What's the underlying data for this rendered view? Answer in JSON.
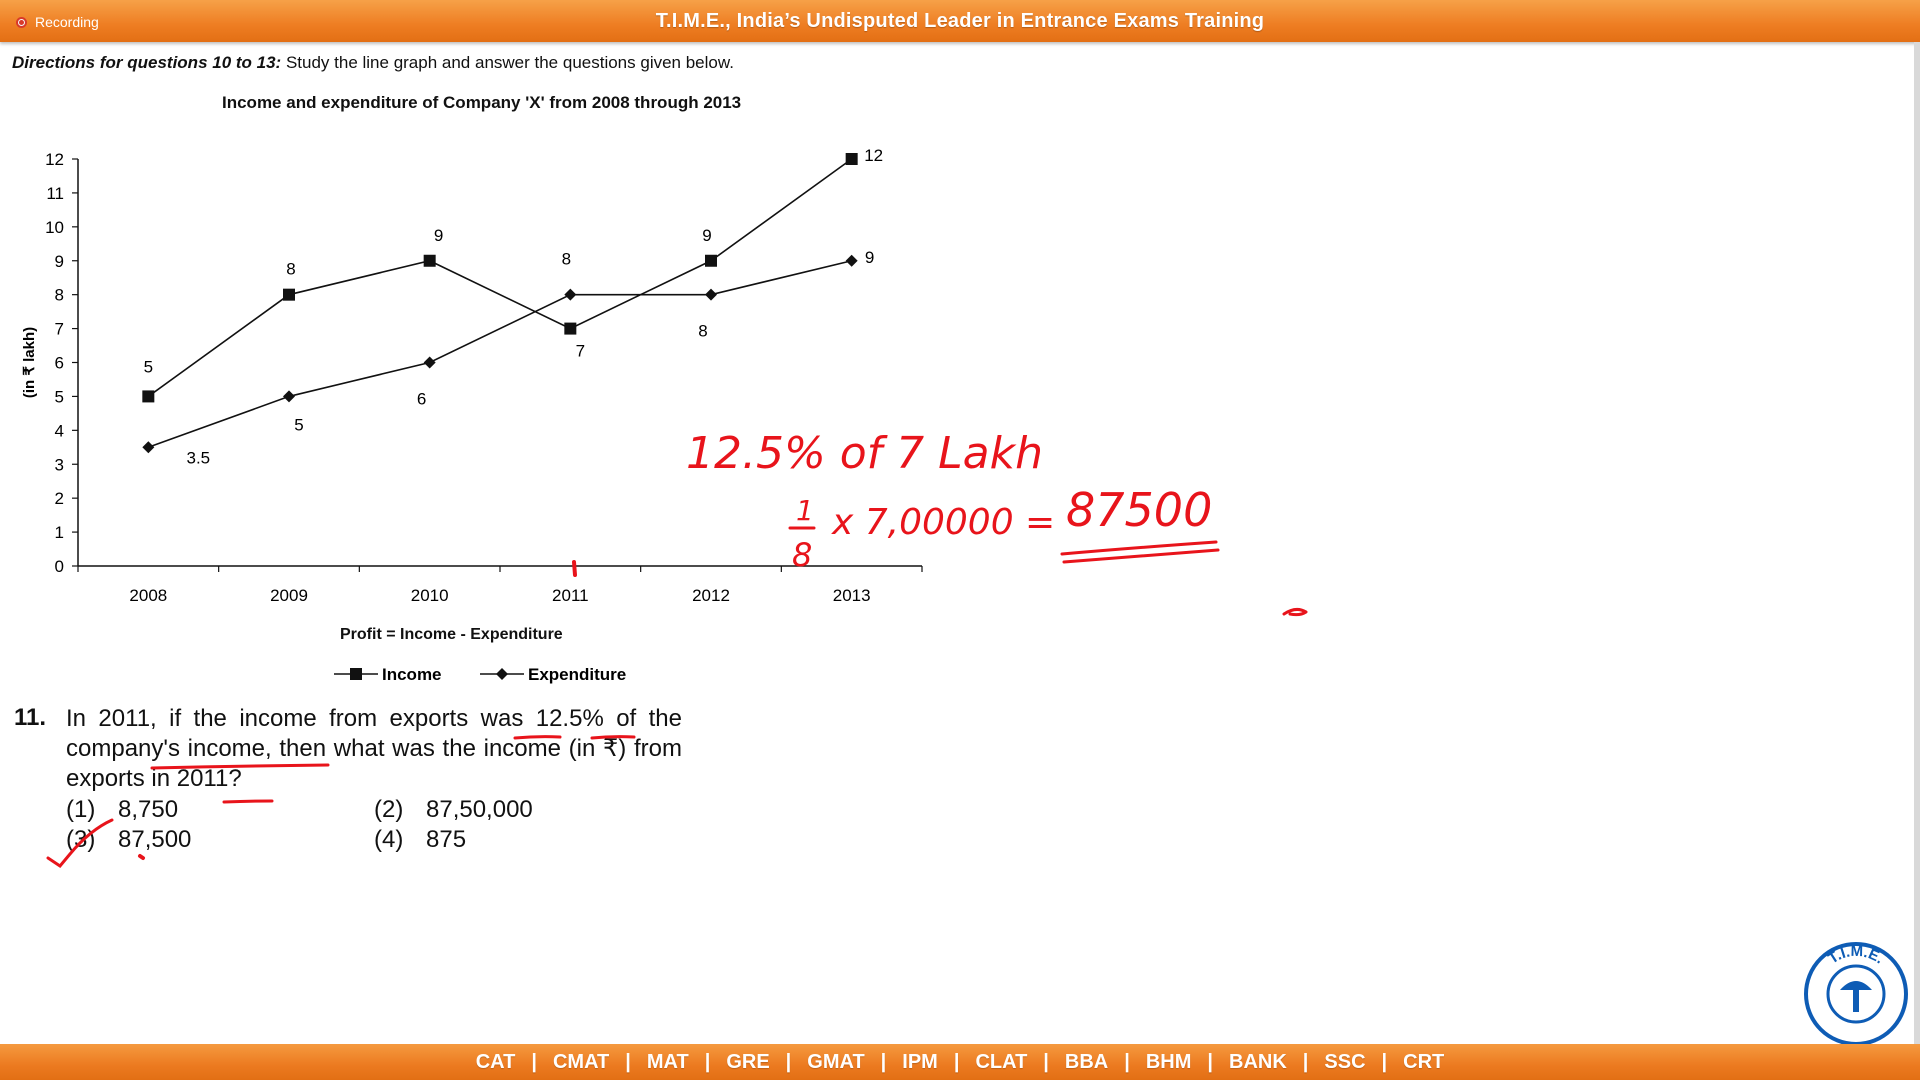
{
  "header": {
    "recording_label": "Recording",
    "title": "T.I.M.E., India’s Undisputed Leader in Entrance Exams Training"
  },
  "directions": {
    "lead": "Directions for questions 10 to 13:",
    "text": " Study the line graph and answer the questions given below."
  },
  "chart_data": {
    "type": "line",
    "title": "Income and expenditure of Company 'X' from 2008 through 2013",
    "ylabel": "(in ₹ lakh)",
    "xlabel": "",
    "categories": [
      "2008",
      "2009",
      "2010",
      "2011",
      "2012",
      "2013"
    ],
    "ylim": [
      0,
      12
    ],
    "yticks": [
      "0",
      "1",
      "2",
      "3",
      "4",
      "5",
      "6",
      "7",
      "8",
      "9",
      "10",
      "11",
      "12"
    ],
    "series": [
      {
        "name": "Income",
        "marker": "square",
        "values": [
          5,
          8,
          9,
          7,
          9,
          12
        ],
        "labels": [
          "5",
          "8",
          "9",
          "7",
          "9",
          "12"
        ]
      },
      {
        "name": "Expenditure",
        "marker": "diamond",
        "values": [
          3.5,
          5,
          6,
          8,
          8,
          9
        ],
        "labels": [
          "3.5",
          "5",
          "6",
          "8",
          "8",
          "9"
        ]
      }
    ],
    "legend_position": "bottom",
    "grid": false
  },
  "profit_note": "Profit = Income - Expenditure",
  "question": {
    "number": "11.",
    "text": "In 2011, if the income from exports was 12.5% of the company's income, then what was the income (in ₹) from exports in 2011?",
    "options": [
      {
        "num": "(1)",
        "value": "8,750"
      },
      {
        "num": "(2)",
        "value": "87,50,000"
      },
      {
        "num": "(3)",
        "value": "87,500"
      },
      {
        "num": "(4)",
        "value": "875"
      }
    ]
  },
  "annotations": {
    "line1": "12.5% of 7 Lakh",
    "fraction_num": "1",
    "fraction_den": "8",
    "calc": "x 7,00000 =",
    "result": "87500",
    "ink_color": "#e8141b"
  },
  "logo": {
    "text": "T.I.M.E."
  },
  "nav": [
    "CAT",
    "CMAT",
    "MAT",
    "GRE",
    "GMAT",
    "IPM",
    "CLAT",
    "BBA",
    "BHM",
    "BANK",
    "SSC",
    "CRT"
  ]
}
